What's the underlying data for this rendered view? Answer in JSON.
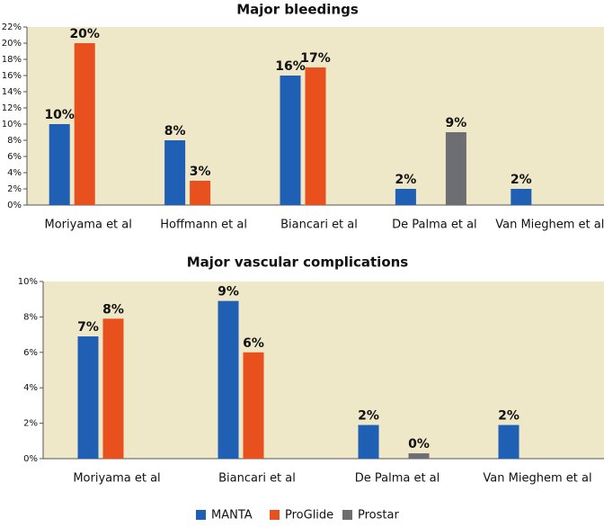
{
  "chart_data": [
    {
      "type": "bar",
      "title": "Major bleedings",
      "categories": [
        "Moriyama et al",
        "Hoffmann et al",
        "Biancari et al",
        "De Palma et al",
        "Van Mieghem et al"
      ],
      "series": [
        {
          "name": "MANTA",
          "color": "#1f5fb4",
          "values": [
            10,
            8,
            16,
            2,
            2
          ],
          "value_labels": [
            "10%",
            "8%",
            "16%",
            "2%",
            "2%"
          ]
        },
        {
          "name": "ProGlide",
          "color": "#e8501e",
          "values": [
            20,
            3,
            17,
            null,
            null
          ],
          "value_labels": [
            "20%",
            "3%",
            "17%",
            null,
            null
          ]
        },
        {
          "name": "Prostar",
          "color": "#6d6e71",
          "values": [
            null,
            null,
            null,
            9,
            null
          ],
          "value_labels": [
            null,
            null,
            null,
            "9%",
            null
          ]
        }
      ],
      "ylim": [
        0,
        22
      ],
      "yticks": [
        {
          "value": 0,
          "label": "0%"
        },
        {
          "value": 2,
          "label": "2%"
        },
        {
          "value": 4,
          "label": "4%"
        },
        {
          "value": 6,
          "label": "6%"
        },
        {
          "value": 8,
          "label": "8%"
        },
        {
          "value": 10,
          "label": "10%"
        },
        {
          "value": 12,
          "label": "12%"
        },
        {
          "value": 14,
          "label": "14%"
        },
        {
          "value": 16,
          "label": "16%"
        },
        {
          "value": 18,
          "label": "18%"
        },
        {
          "value": 20,
          "label": "20%"
        },
        {
          "value": 22,
          "label": "22%"
        }
      ]
    },
    {
      "type": "bar",
      "title": "Major vascular complications",
      "categories": [
        "Moriyama et al",
        "Biancari et al",
        "De Palma et al",
        "Van Mieghem et al"
      ],
      "series": [
        {
          "name": "MANTA",
          "color": "#1f5fb4",
          "values": [
            6.9,
            8.9,
            1.9,
            1.9
          ],
          "value_labels": [
            "7%",
            "9%",
            "2%",
            "2%"
          ]
        },
        {
          "name": "ProGlide",
          "color": "#e8501e",
          "values": [
            7.9,
            6.0,
            null,
            null
          ],
          "value_labels": [
            "8%",
            "6%",
            null,
            null
          ]
        },
        {
          "name": "Prostar",
          "color": "#6d6e71",
          "values": [
            null,
            null,
            0.3,
            null
          ],
          "value_labels": [
            null,
            null,
            "0%",
            null
          ]
        }
      ],
      "ylim": [
        0,
        10
      ],
      "yticks": [
        {
          "value": 0,
          "label": "0%"
        },
        {
          "value": 2,
          "label": "2%"
        },
        {
          "value": 4,
          "label": "4%"
        },
        {
          "value": 6,
          "label": "6%"
        },
        {
          "value": 8,
          "label": "8%"
        },
        {
          "value": 10,
          "label": "10%"
        }
      ]
    }
  ]
}
